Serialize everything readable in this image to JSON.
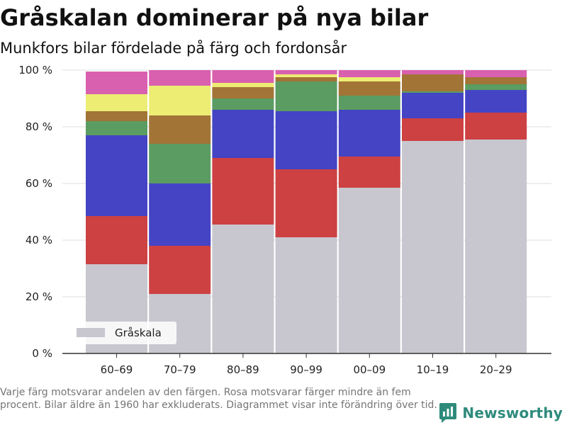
{
  "header": {
    "title": "Gråskalan dominerar på nya bilar",
    "subtitle": "Munkfors bilar fördelade på färg och fordonsår"
  },
  "footnote": "Varje färg motsvarar andelen av den färgen. Rosa motsvarar färger mindre än fem procent. Bilar äldre än 1960 har exkluderats. Diagrammet visar inte förändring över tid.",
  "brand": {
    "name": "Newsworthy",
    "logo_icon": "newsworthy-logo-icon",
    "color": "#2e8b7c"
  },
  "chart_data": {
    "type": "bar",
    "stacked": true,
    "categories": [
      "60–69",
      "70–79",
      "80–89",
      "90–99",
      "00–09",
      "10–19",
      "20–29"
    ],
    "y_ticks": [
      "0 %",
      "20 %",
      "40 %",
      "60 %",
      "80 %",
      "100 %"
    ],
    "ylim": [
      0,
      100
    ],
    "grid": true,
    "legend": {
      "position": "bottom-left",
      "entries": [
        "Gråskala"
      ]
    },
    "series": [
      {
        "name": "Gråskala",
        "color": "#c8c7cf",
        "values": [
          31.5,
          21,
          45.5,
          41,
          58.5,
          75,
          75.5
        ]
      },
      {
        "color": "#cd4142",
        "values": [
          17,
          17,
          23.5,
          24,
          11,
          8,
          9.5
        ]
      },
      {
        "color": "#4444c4",
        "values": [
          28.5,
          22,
          17,
          20.5,
          16.5,
          9,
          8
        ]
      },
      {
        "color": "#5b9c62",
        "values": [
          5,
          14,
          4,
          10.5,
          5,
          0.5,
          2
        ]
      },
      {
        "color": "#a27436",
        "values": [
          3.5,
          10,
          4,
          1.5,
          5,
          6,
          2.5
        ]
      },
      {
        "color": "#eced72",
        "values": [
          6,
          10.5,
          1.5,
          1,
          1.5,
          0,
          0
        ]
      },
      {
        "color": "#d960ae",
        "values": [
          8,
          5.5,
          4.5,
          1.5,
          2.5,
          1.5,
          2.5
        ]
      }
    ]
  }
}
